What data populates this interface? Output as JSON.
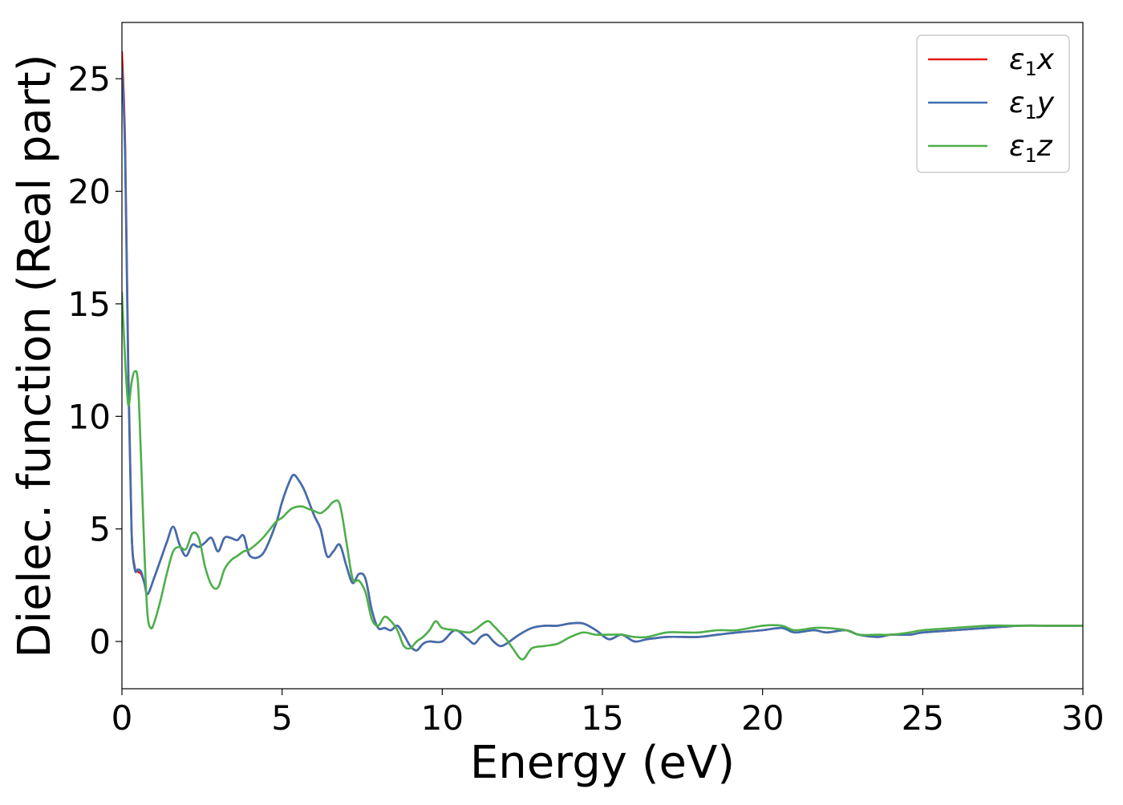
{
  "chart_data": {
    "type": "line",
    "xlabel": "Energy (eV)",
    "ylabel": "Dielec. function (Real part)",
    "xlim": [
      0,
      30
    ],
    "ylim": [
      -2.1,
      27.5
    ],
    "xticks": [
      0,
      5,
      10,
      15,
      20,
      25,
      30
    ],
    "yticks": [
      0,
      5,
      10,
      15,
      20,
      25
    ],
    "grid": false,
    "legend_position": "top-right",
    "series": [
      {
        "name": "ε1x",
        "legend_base": "ε",
        "legend_sub": "1",
        "legend_suffix": "x",
        "color": "#e41a1c",
        "x": [
          0,
          0.1,
          0.2,
          0.3,
          0.4,
          0.5,
          0.6,
          0.7,
          0.8,
          1.0,
          1.2,
          1.4,
          1.6,
          1.8,
          2.0,
          2.2,
          2.4,
          2.6,
          2.8,
          3.0,
          3.2,
          3.4,
          3.6,
          3.8,
          4.0,
          4.4,
          4.8,
          5.0,
          5.2,
          5.35,
          5.5,
          5.7,
          6.0,
          6.2,
          6.4,
          6.6,
          6.8,
          7.0,
          7.2,
          7.4,
          7.6,
          7.8,
          8.0,
          8.2,
          8.4,
          8.6,
          8.8,
          9.0,
          9.2,
          9.4,
          9.6,
          10.0,
          10.4,
          10.8,
          11.0,
          11.2,
          11.4,
          11.6,
          11.8,
          12.0,
          12.4,
          12.8,
          13.2,
          13.6,
          14.0,
          14.4,
          14.8,
          15.2,
          15.6,
          16.0,
          16.4,
          17.0,
          17.6,
          18.0,
          18.6,
          19.2,
          20.0,
          20.6,
          21.0,
          21.6,
          22.0,
          22.6,
          23.0,
          23.6,
          24.0,
          24.6,
          25.0,
          26.0,
          27.0,
          28.0,
          29.0,
          30.0
        ],
        "y": [
          26.2,
          22.0,
          12.0,
          5.0,
          3.3,
          3.1,
          3.0,
          2.6,
          2.1,
          2.8,
          3.6,
          4.4,
          5.1,
          4.3,
          3.8,
          4.3,
          4.2,
          4.4,
          4.6,
          4.0,
          4.6,
          4.6,
          4.5,
          4.7,
          3.8,
          3.9,
          5.2,
          6.2,
          7.0,
          7.4,
          7.2,
          6.7,
          5.6,
          5.0,
          3.8,
          4.0,
          4.3,
          3.4,
          2.6,
          3.0,
          2.8,
          1.4,
          0.6,
          0.6,
          0.5,
          0.7,
          0.3,
          -0.2,
          -0.4,
          -0.1,
          0.0,
          0.0,
          0.5,
          0.1,
          -0.1,
          0.2,
          0.3,
          0.0,
          -0.2,
          -0.1,
          0.3,
          0.6,
          0.7,
          0.7,
          0.8,
          0.8,
          0.5,
          0.1,
          0.3,
          0.0,
          0.1,
          0.2,
          0.2,
          0.2,
          0.3,
          0.4,
          0.5,
          0.6,
          0.4,
          0.5,
          0.4,
          0.5,
          0.3,
          0.2,
          0.3,
          0.3,
          0.4,
          0.5,
          0.6,
          0.7,
          0.7,
          0.7
        ]
      },
      {
        "name": "ε1y",
        "legend_base": "ε",
        "legend_sub": "1",
        "legend_suffix": "y",
        "color": "#3e6fb0",
        "x": [
          0,
          0.1,
          0.2,
          0.3,
          0.4,
          0.5,
          0.6,
          0.7,
          0.8,
          1.0,
          1.2,
          1.4,
          1.6,
          1.8,
          2.0,
          2.2,
          2.4,
          2.6,
          2.8,
          3.0,
          3.2,
          3.4,
          3.6,
          3.8,
          4.0,
          4.4,
          4.8,
          5.0,
          5.2,
          5.35,
          5.5,
          5.7,
          6.0,
          6.2,
          6.4,
          6.6,
          6.8,
          7.0,
          7.2,
          7.4,
          7.6,
          7.8,
          8.0,
          8.2,
          8.4,
          8.6,
          8.8,
          9.0,
          9.2,
          9.4,
          9.6,
          10.0,
          10.4,
          10.8,
          11.0,
          11.2,
          11.4,
          11.6,
          11.8,
          12.0,
          12.4,
          12.8,
          13.2,
          13.6,
          14.0,
          14.4,
          14.8,
          15.2,
          15.6,
          16.0,
          16.4,
          17.0,
          17.6,
          18.0,
          18.6,
          19.2,
          20.0,
          20.6,
          21.0,
          21.6,
          22.0,
          22.6,
          23.0,
          23.6,
          24.0,
          24.6,
          25.0,
          26.0,
          27.0,
          28.0,
          29.0,
          30.0
        ],
        "y": [
          25.5,
          21.5,
          11.5,
          4.9,
          3.2,
          3.2,
          3.1,
          2.6,
          2.1,
          2.8,
          3.6,
          4.4,
          5.1,
          4.3,
          3.8,
          4.3,
          4.2,
          4.4,
          4.6,
          4.0,
          4.6,
          4.6,
          4.5,
          4.7,
          3.8,
          3.9,
          5.2,
          6.2,
          7.0,
          7.4,
          7.2,
          6.7,
          5.6,
          5.0,
          3.8,
          4.0,
          4.3,
          3.4,
          2.6,
          3.0,
          2.8,
          1.4,
          0.6,
          0.6,
          0.5,
          0.7,
          0.3,
          -0.2,
          -0.4,
          -0.1,
          0.0,
          0.0,
          0.5,
          0.1,
          -0.1,
          0.2,
          0.3,
          0.0,
          -0.2,
          -0.1,
          0.3,
          0.6,
          0.7,
          0.7,
          0.8,
          0.8,
          0.5,
          0.1,
          0.3,
          0.0,
          0.1,
          0.2,
          0.2,
          0.2,
          0.3,
          0.4,
          0.5,
          0.6,
          0.4,
          0.5,
          0.4,
          0.5,
          0.3,
          0.2,
          0.3,
          0.3,
          0.4,
          0.5,
          0.6,
          0.7,
          0.7,
          0.7
        ]
      },
      {
        "name": "ε1z",
        "legend_base": "ε",
        "legend_sub": "1",
        "legend_suffix": "z",
        "color": "#4daf4a",
        "x": [
          0,
          0.1,
          0.2,
          0.3,
          0.4,
          0.5,
          0.6,
          0.7,
          0.8,
          0.9,
          1.0,
          1.2,
          1.4,
          1.6,
          1.8,
          2.0,
          2.2,
          2.4,
          2.6,
          2.8,
          3.0,
          3.2,
          3.4,
          3.6,
          3.8,
          4.0,
          4.4,
          4.8,
          5.0,
          5.3,
          5.6,
          5.8,
          6.0,
          6.2,
          6.4,
          6.6,
          6.8,
          7.0,
          7.2,
          7.4,
          7.6,
          7.8,
          8.0,
          8.2,
          8.4,
          8.6,
          8.8,
          9.0,
          9.2,
          9.4,
          9.6,
          9.8,
          10.0,
          10.4,
          10.8,
          11.0,
          11.4,
          11.6,
          11.8,
          12.0,
          12.2,
          12.5,
          12.8,
          13.2,
          13.6,
          14.0,
          14.4,
          14.8,
          15.2,
          15.6,
          16.0,
          16.4,
          17.0,
          17.6,
          18.0,
          18.6,
          19.2,
          20.0,
          20.6,
          21.0,
          21.6,
          22.0,
          22.6,
          23.0,
          23.6,
          24.0,
          24.6,
          25.0,
          26.0,
          27.0,
          28.0,
          29.0,
          30.0
        ],
        "y": [
          15.5,
          12.5,
          10.5,
          11.5,
          12.0,
          11.5,
          8.0,
          4.0,
          1.2,
          0.6,
          0.8,
          1.8,
          3.0,
          4.0,
          4.2,
          4.1,
          4.8,
          4.6,
          3.3,
          2.5,
          2.4,
          3.2,
          3.6,
          3.8,
          4.0,
          4.1,
          4.6,
          5.3,
          5.5,
          5.9,
          6.0,
          5.9,
          5.8,
          5.7,
          5.9,
          6.2,
          6.1,
          4.5,
          2.8,
          2.7,
          2.2,
          1.0,
          0.7,
          1.1,
          0.9,
          0.5,
          -0.2,
          -0.3,
          0.0,
          0.2,
          0.5,
          0.9,
          0.6,
          0.5,
          0.4,
          0.5,
          0.9,
          0.7,
          0.4,
          0.1,
          -0.3,
          -0.8,
          -0.3,
          -0.2,
          -0.1,
          0.2,
          0.4,
          0.3,
          0.3,
          0.3,
          0.2,
          0.2,
          0.4,
          0.4,
          0.4,
          0.5,
          0.5,
          0.7,
          0.7,
          0.5,
          0.6,
          0.6,
          0.5,
          0.3,
          0.3,
          0.3,
          0.4,
          0.5,
          0.6,
          0.7,
          0.7,
          0.7,
          0.7
        ]
      }
    ]
  }
}
